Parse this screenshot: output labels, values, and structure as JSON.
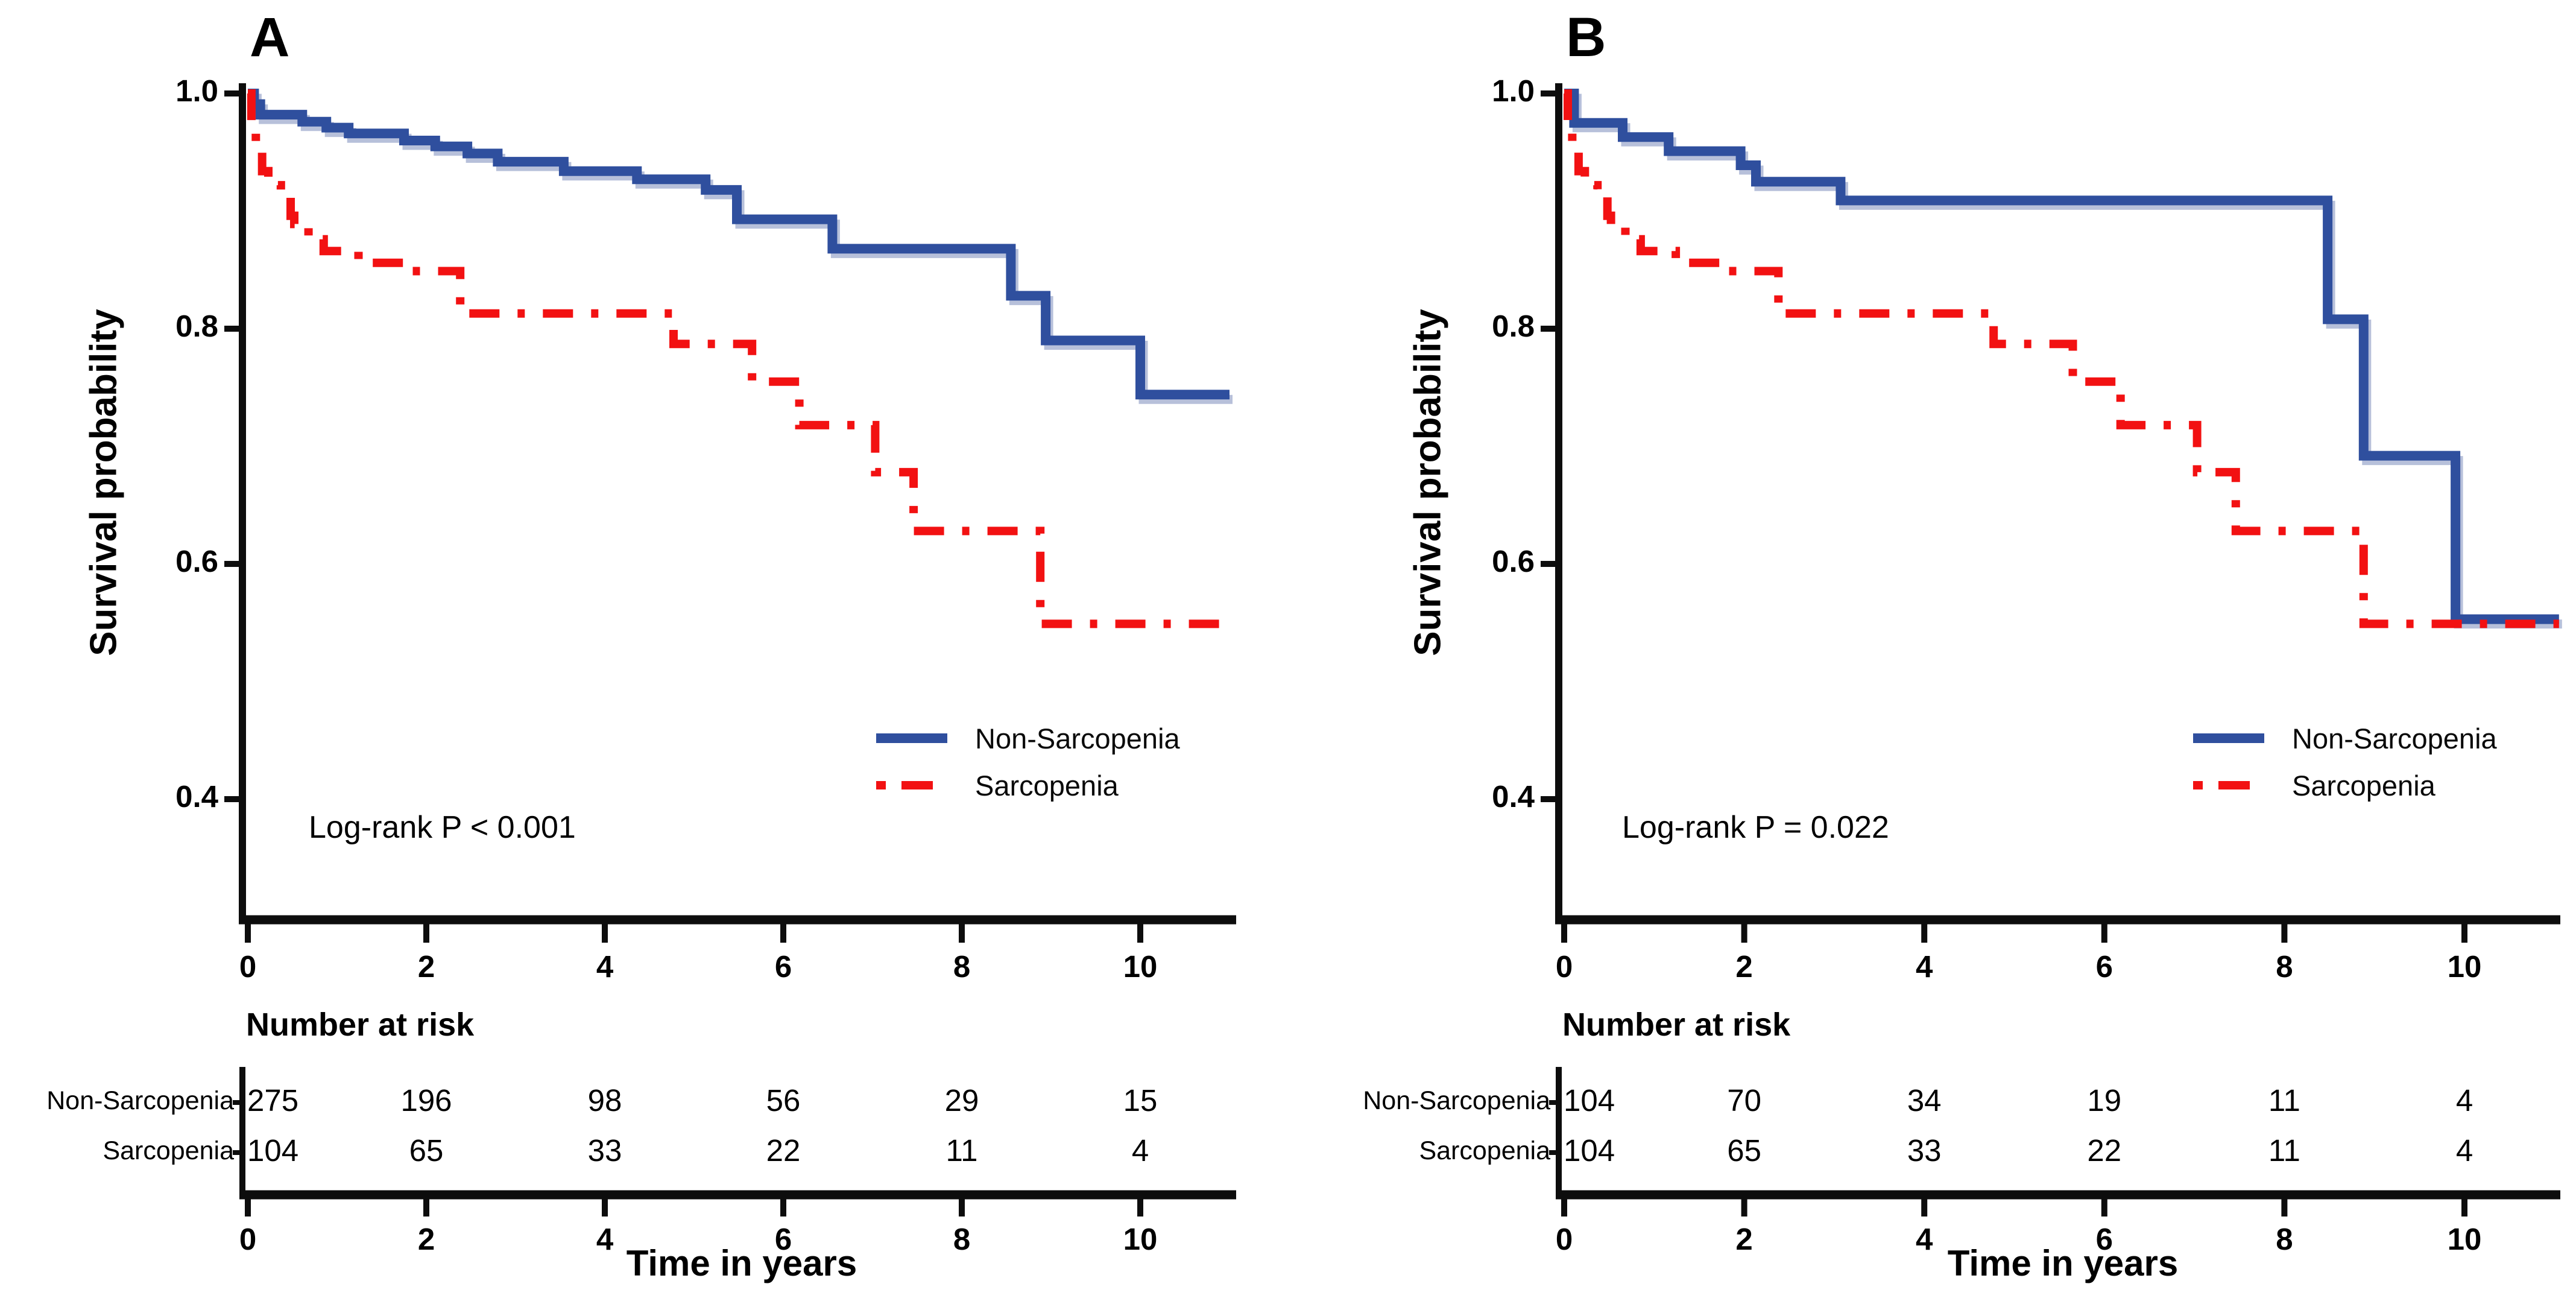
{
  "figure": {
    "background": "#ffffff",
    "ylabel": "Survival probability",
    "xlabel": "Time in years"
  },
  "colors": {
    "non_sarcopenia": "#2f4f9e",
    "non_sarcopenia_shadow": "#b7c0da",
    "sarcopenia": "#f21112",
    "axis": "#0d0d0d",
    "text": "#000000"
  },
  "chart_data": [
    {
      "type": "line",
      "subtype": "kaplan-meier-step",
      "panel_label": "A",
      "ylabel": "Survival probability",
      "xlabel": "Time in years",
      "xlim": [
        0,
        11
      ],
      "ylim": [
        0.3,
        1.0
      ],
      "xticks": [
        0,
        2,
        4,
        6,
        8,
        10
      ],
      "xtick_labels": [
        "0",
        "2",
        "4",
        "6",
        "8",
        "10"
      ],
      "yticks": [
        1.0,
        0.8,
        0.6,
        0.4
      ],
      "ytick_labels": [
        "1.0",
        "0.8",
        "0.6",
        "0.4"
      ],
      "annotation": "Log-rank P < 0.001",
      "legend_position": "center-right",
      "grid": false,
      "legend": [
        {
          "label": "Non-Sarcopenia",
          "style": "solid",
          "color_key": "non_sarcopenia"
        },
        {
          "label": "Sarcopenia",
          "style": "dashdot",
          "color_key": "sarcopenia"
        }
      ],
      "series": [
        {
          "name": "Non-Sarcopenia",
          "style": "solid",
          "color_key": "non_sarcopenia",
          "steps": [
            [
              0,
              1.0
            ],
            [
              0.07,
              0.991
            ],
            [
              0.14,
              0.982
            ],
            [
              0.61,
              0.976
            ],
            [
              0.88,
              0.971
            ],
            [
              1.13,
              0.966
            ],
            [
              1.75,
              0.96
            ],
            [
              2.1,
              0.955
            ],
            [
              2.46,
              0.949
            ],
            [
              2.8,
              0.942
            ],
            [
              3.54,
              0.934
            ],
            [
              4.36,
              0.927
            ],
            [
              5.13,
              0.918
            ],
            [
              5.48,
              0.893
            ],
            [
              6.55,
              0.868
            ],
            [
              8.55,
              0.828
            ],
            [
              8.94,
              0.79
            ],
            [
              10.0,
              0.744
            ]
          ]
        },
        {
          "name": "Sarcopenia",
          "style": "dashdot",
          "color_key": "sarcopenia",
          "steps": [
            [
              0,
              1.0
            ],
            [
              0.04,
              0.973
            ],
            [
              0.09,
              0.952
            ],
            [
              0.16,
              0.934
            ],
            [
              0.23,
              0.922
            ],
            [
              0.37,
              0.912
            ],
            [
              0.48,
              0.896
            ],
            [
              0.52,
              0.889
            ],
            [
              0.68,
              0.876
            ],
            [
              0.85,
              0.866
            ],
            [
              1.24,
              0.856
            ],
            [
              1.78,
              0.849
            ],
            [
              2.38,
              0.813
            ],
            [
              4.77,
              0.787
            ],
            [
              5.65,
              0.755
            ],
            [
              6.18,
              0.718
            ],
            [
              7.03,
              0.678
            ],
            [
              7.46,
              0.628
            ],
            [
              8.88,
              0.549
            ]
          ]
        }
      ],
      "risk_table": {
        "title": "Number at risk",
        "time_points": [
          0,
          2,
          4,
          6,
          8,
          10
        ],
        "rows": [
          {
            "label": "Non-Sarcopenia",
            "values": [
              "275",
              "196",
              "98",
              "56",
              "29",
              "15"
            ]
          },
          {
            "label": "Sarcopenia",
            "values": [
              "104",
              "65",
              "33",
              "22",
              "11",
              "4"
            ]
          }
        ]
      }
    },
    {
      "type": "line",
      "subtype": "kaplan-meier-step",
      "panel_label": "B",
      "ylabel": "Survival probability",
      "xlabel": "Time in years",
      "xlim": [
        0,
        11
      ],
      "ylim": [
        0.3,
        1.0
      ],
      "xticks": [
        0,
        2,
        4,
        6,
        8,
        10
      ],
      "xtick_labels": [
        "0",
        "2",
        "4",
        "6",
        "8",
        "10"
      ],
      "yticks": [
        1.0,
        0.8,
        0.6,
        0.4
      ],
      "ytick_labels": [
        "1.0",
        "0.8",
        "0.6",
        "0.4"
      ],
      "annotation": "Log-rank P = 0.022",
      "legend_position": "center-right",
      "grid": false,
      "legend": [
        {
          "label": "Non-Sarcopenia",
          "style": "solid",
          "color_key": "non_sarcopenia"
        },
        {
          "label": "Sarcopenia",
          "style": "dashdot",
          "color_key": "sarcopenia"
        }
      ],
      "series": [
        {
          "name": "Non-Sarcopenia",
          "style": "solid",
          "color_key": "non_sarcopenia",
          "steps": [
            [
              0,
              1.0
            ],
            [
              0.11,
              0.975
            ],
            [
              0.65,
              0.963
            ],
            [
              1.16,
              0.951
            ],
            [
              1.96,
              0.939
            ],
            [
              2.13,
              0.925
            ],
            [
              3.07,
              0.909
            ],
            [
              8.48,
              0.808
            ],
            [
              8.88,
              0.692
            ],
            [
              9.9,
              0.553
            ]
          ]
        },
        {
          "name": "Sarcopenia",
          "style": "dashdot",
          "color_key": "sarcopenia",
          "steps": [
            [
              0,
              1.0
            ],
            [
              0.04,
              0.973
            ],
            [
              0.09,
              0.952
            ],
            [
              0.16,
              0.934
            ],
            [
              0.23,
              0.922
            ],
            [
              0.37,
              0.912
            ],
            [
              0.48,
              0.896
            ],
            [
              0.52,
              0.889
            ],
            [
              0.68,
              0.876
            ],
            [
              0.85,
              0.866
            ],
            [
              1.24,
              0.856
            ],
            [
              1.78,
              0.849
            ],
            [
              2.38,
              0.813
            ],
            [
              4.77,
              0.787
            ],
            [
              5.65,
              0.755
            ],
            [
              6.18,
              0.718
            ],
            [
              7.03,
              0.678
            ],
            [
              7.46,
              0.628
            ],
            [
              8.88,
              0.549
            ]
          ]
        }
      ],
      "risk_table": {
        "title": "Number at risk",
        "time_points": [
          0,
          2,
          4,
          6,
          8,
          10
        ],
        "rows": [
          {
            "label": "Non-Sarcopenia",
            "values": [
              "104",
              "70",
              "34",
              "19",
              "11",
              "4"
            ]
          },
          {
            "label": "Sarcopenia",
            "values": [
              "104",
              "65",
              "33",
              "22",
              "11",
              "4"
            ]
          }
        ]
      }
    }
  ]
}
